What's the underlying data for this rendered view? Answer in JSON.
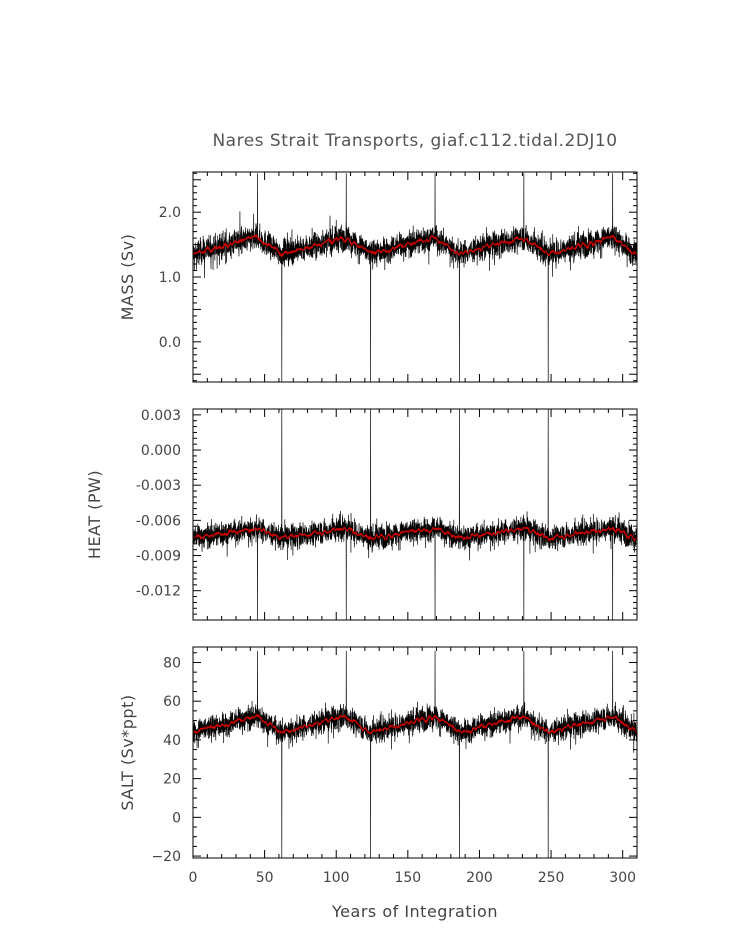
{
  "figure": {
    "title": "Nares Strait Transports, giaf.c112.tidal.2DJ10",
    "xlabel": "Years of Integration"
  },
  "chart_data": [
    {
      "type": "line",
      "title": "",
      "ylabel": "MASS (Sv)",
      "xlim": [
        0,
        310
      ],
      "ylim": [
        -0.62,
        2.62
      ],
      "xticks": [
        0,
        50,
        100,
        150,
        200,
        250,
        300
      ],
      "xtick_labels": [
        "0",
        "50",
        "100",
        "150",
        "200",
        "250",
        "300"
      ],
      "yticks": [
        0.0,
        1.0,
        2.0
      ],
      "ytick_labels": [
        "0.0",
        "1.0",
        "2.0"
      ],
      "ymajor": 0.5,
      "yminor": 0.1,
      "baseline": 1.45,
      "noise": 0.35,
      "cycle_period": 62,
      "cycle_amp": 0.18,
      "spikes_up": [
        [
          45,
          2.6
        ],
        [
          107,
          2.6
        ],
        [
          169,
          2.6
        ],
        [
          231,
          2.6
        ],
        [
          293,
          2.6
        ]
      ],
      "spikes_down": [
        [
          62,
          -0.62
        ],
        [
          124,
          -0.62
        ],
        [
          186,
          -0.62
        ],
        [
          248,
          -0.62
        ]
      ],
      "series": [
        {
          "name": "",
          "color": "#000000",
          "kind": "raw"
        },
        {
          "name": "",
          "color": "#cc0000",
          "kind": "annual mean"
        }
      ]
    },
    {
      "type": "line",
      "title": "",
      "ylabel": "HEAT (PW)",
      "xlim": [
        0,
        310
      ],
      "ylim": [
        -0.0145,
        0.0035
      ],
      "xticks": [
        0,
        50,
        100,
        150,
        200,
        250,
        300
      ],
      "xtick_labels": [
        "",
        "",
        "",
        "",
        "",
        "",
        ""
      ],
      "yticks": [
        -0.012,
        -0.009,
        -0.006,
        -0.003,
        0.0,
        0.003
      ],
      "ytick_labels": [
        "-0.012",
        "-0.009",
        "-0.006",
        "-0.003",
        "0.000",
        "0.003"
      ],
      "ymajor": 0.003,
      "yminor": 0.0005,
      "baseline": -0.0072,
      "noise": 0.0018,
      "cycle_period": 62,
      "cycle_amp": 0.0006,
      "spikes_up": [
        [
          62,
          0.0035
        ],
        [
          124,
          0.0035
        ],
        [
          186,
          0.0035
        ],
        [
          248,
          0.0035
        ]
      ],
      "spikes_down": [
        [
          45,
          -0.0145
        ],
        [
          107,
          -0.0145
        ],
        [
          169,
          -0.0145
        ],
        [
          231,
          -0.0145
        ],
        [
          293,
          -0.0145
        ]
      ],
      "series": [
        {
          "name": "",
          "color": "#000000",
          "kind": "raw"
        },
        {
          "name": "",
          "color": "#cc0000",
          "kind": "annual mean"
        }
      ]
    },
    {
      "type": "line",
      "title": "",
      "ylabel": "SALT (Sv*ppt)",
      "xlim": [
        0,
        310
      ],
      "ylim": [
        -21,
        88
      ],
      "xticks": [
        0,
        50,
        100,
        150,
        200,
        250,
        300
      ],
      "xtick_labels": [
        "0",
        "50",
        "100",
        "150",
        "200",
        "250",
        "300"
      ],
      "yticks": [
        -20,
        0,
        20,
        40,
        60,
        80
      ],
      "ytick_labels": [
        "−20",
        "0",
        "20",
        "40",
        "60",
        "80"
      ],
      "ymajor": 20,
      "yminor": 5,
      "baseline": 47,
      "noise": 11,
      "cycle_period": 62,
      "cycle_amp": 6,
      "spikes_up": [
        [
          45,
          86
        ],
        [
          107,
          86
        ],
        [
          169,
          86
        ],
        [
          231,
          86
        ],
        [
          293,
          86
        ]
      ],
      "spikes_down": [
        [
          62,
          -21
        ],
        [
          124,
          -21
        ],
        [
          186,
          -21
        ],
        [
          248,
          -21
        ]
      ],
      "series": [
        {
          "name": "",
          "color": "#000000",
          "kind": "raw"
        },
        {
          "name": "",
          "color": "#cc0000",
          "kind": "annual mean"
        }
      ]
    }
  ]
}
